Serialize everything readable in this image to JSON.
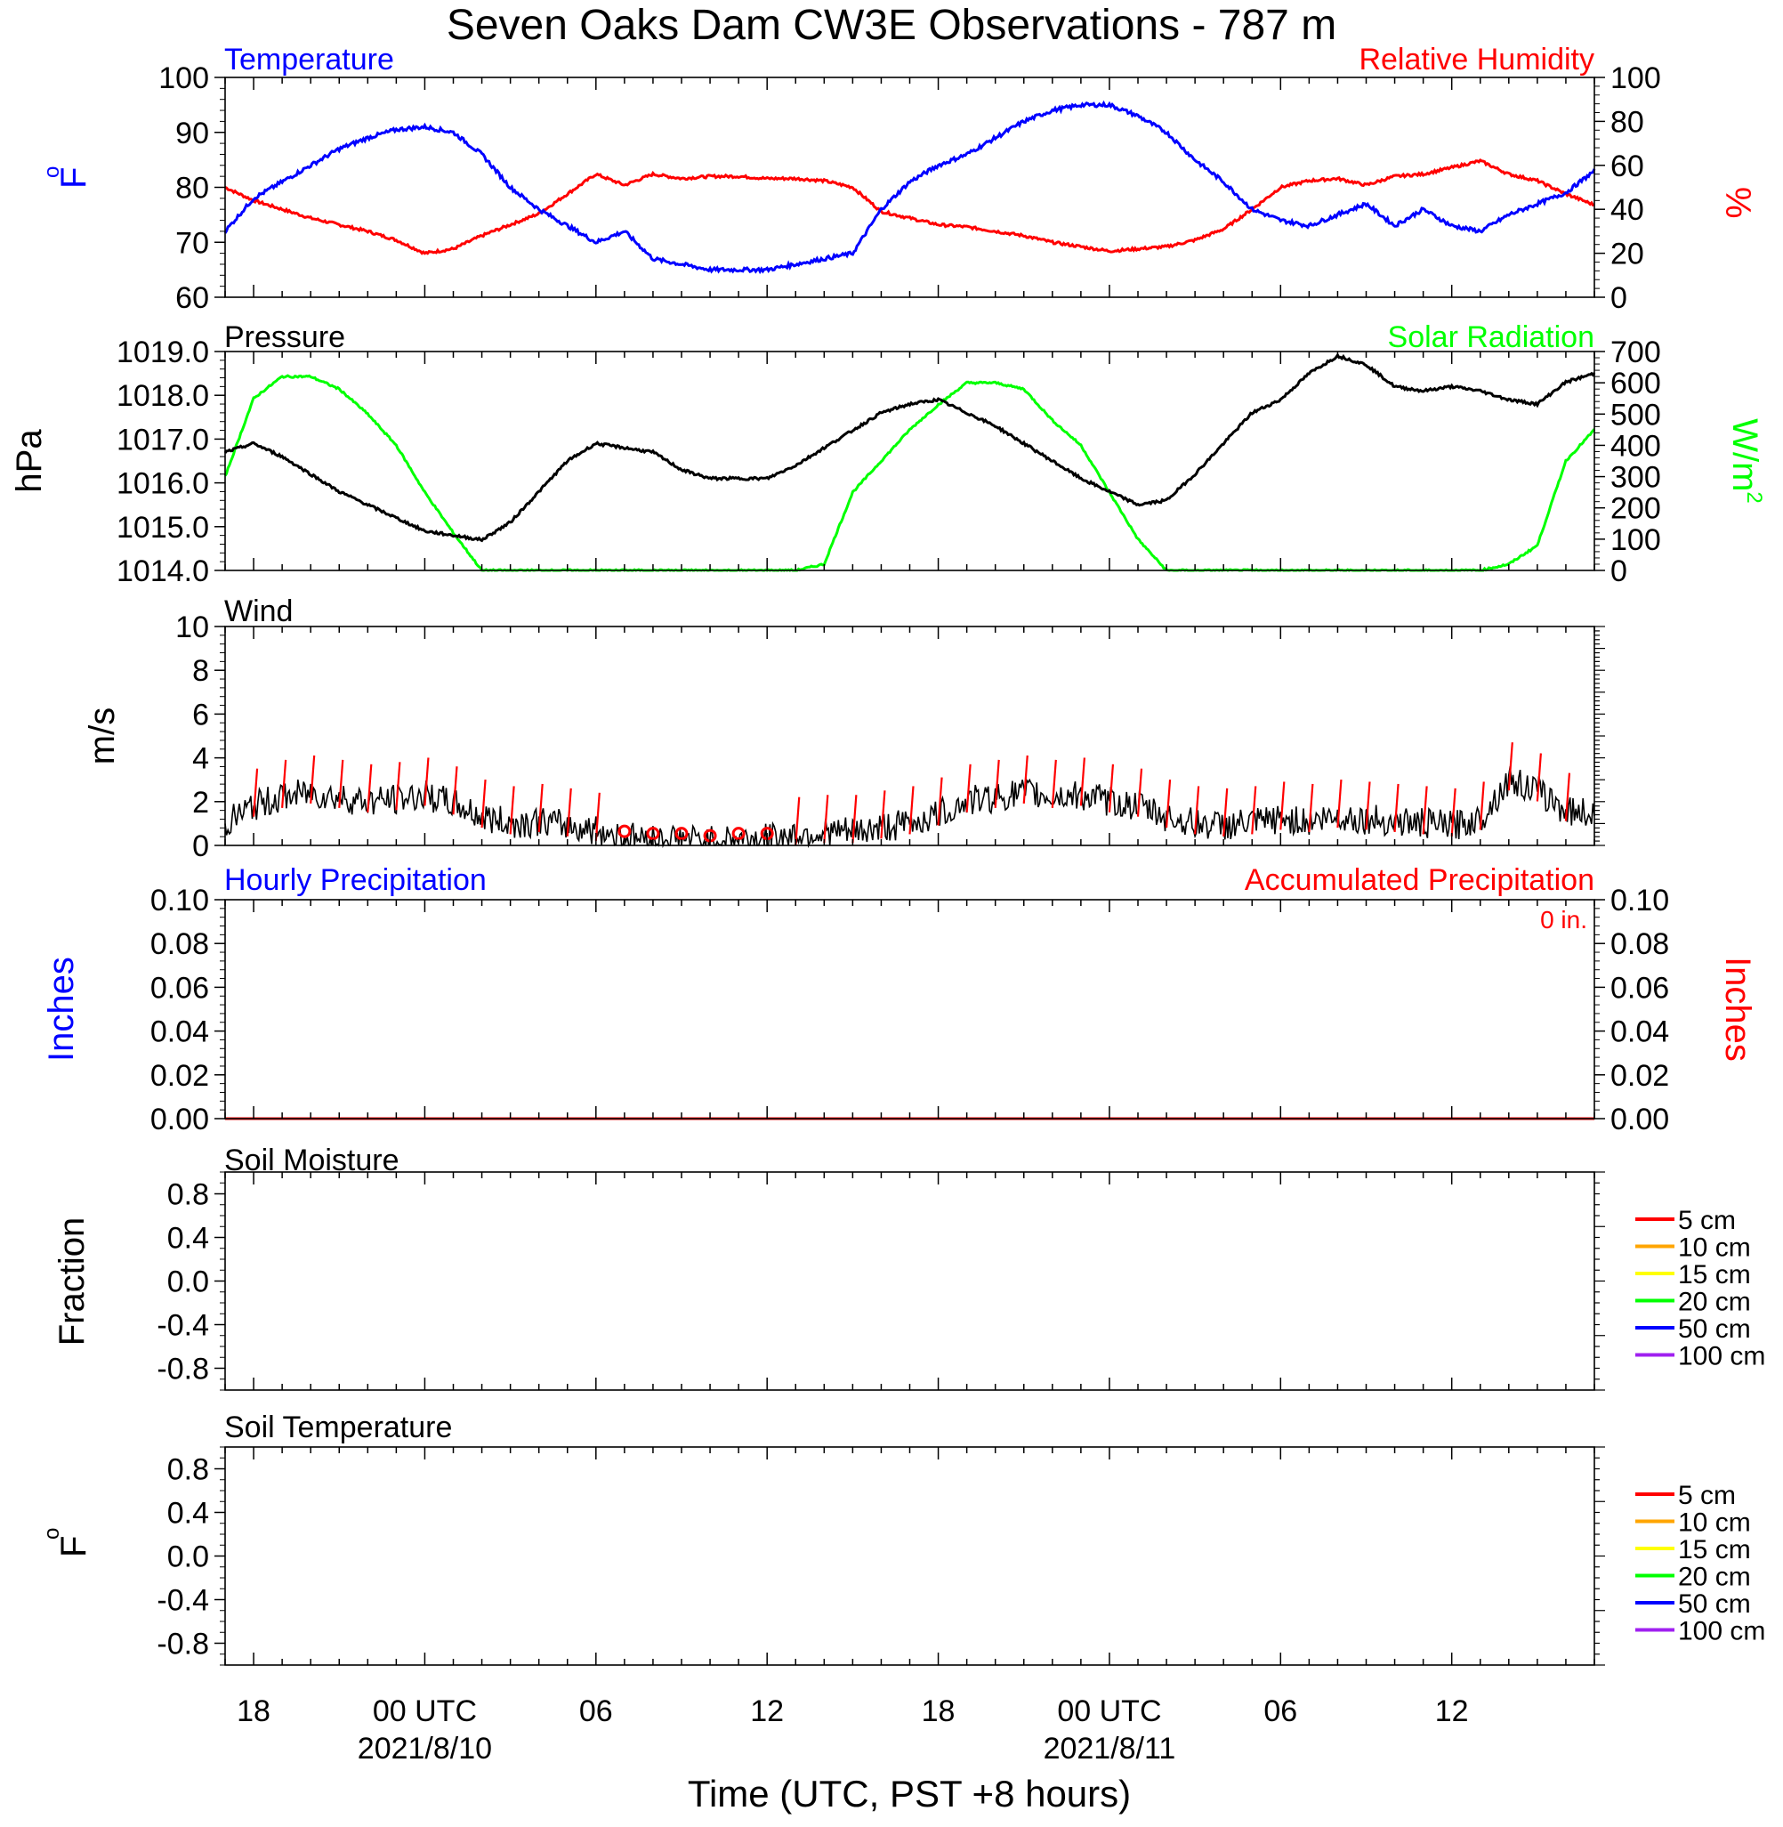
{
  "title": "Seven Oaks Dam CW3E Observations - 787 m",
  "xlabel": "Time (UTC, PST +8 hours)",
  "x_axis": {
    "range_hours": [
      -7,
      41
    ],
    "tick_labels": [
      {
        "hour": -6,
        "label": "18",
        "date": ""
      },
      {
        "hour": 0,
        "label": "00 UTC",
        "date": "2021/8/10"
      },
      {
        "hour": 6,
        "label": "06",
        "date": ""
      },
      {
        "hour": 12,
        "label": "12",
        "date": ""
      },
      {
        "hour": 18,
        "label": "18",
        "date": ""
      },
      {
        "hour": 24,
        "label": "00 UTC",
        "date": "2021/8/11"
      },
      {
        "hour": 30,
        "label": "06",
        "date": ""
      },
      {
        "hour": 36,
        "label": "12",
        "date": ""
      }
    ]
  },
  "colors": {
    "temperature": "#0000ff",
    "humidity": "#ff0000",
    "pressure": "#000000",
    "solar": "#00ff00",
    "wind": "#000000",
    "wind_barb": "#ff0000",
    "precip_hourly": "#0000ff",
    "precip_accum": "#ff0000"
  },
  "panels": {
    "temp": {
      "label_left": "Temperature",
      "label_right": "Relative Humidity",
      "ylabel_left": "oF",
      "ylabel_right": "%",
      "left_ticks": [
        "60",
        "70",
        "80",
        "90",
        "100"
      ],
      "right_ticks": [
        "0",
        "20",
        "40",
        "60",
        "80",
        "100"
      ]
    },
    "pressure": {
      "label_left": "Pressure",
      "label_right": "Solar Radiation",
      "ylabel_left": "hPa",
      "ylabel_right": "W/m2",
      "left_ticks": [
        "1014.0",
        "1015.0",
        "1016.0",
        "1017.0",
        "1018.0",
        "1019.0"
      ],
      "right_ticks": [
        "0",
        "100",
        "200",
        "300",
        "400",
        "500",
        "600",
        "700"
      ]
    },
    "wind": {
      "label_left": "Wind",
      "ylabel_left": "m/s",
      "left_ticks": [
        "0",
        "2",
        "4",
        "6",
        "8",
        "10"
      ]
    },
    "precip": {
      "label_left": "Hourly Precipitation",
      "label_right": "Accumulated Precipitation",
      "total_text": "0 in.",
      "ylabel_left": "Inches",
      "ylabel_right": "Inches",
      "left_ticks": [
        "0.00",
        "0.02",
        "0.04",
        "0.06",
        "0.08",
        "0.10"
      ],
      "right_ticks": [
        "0.00",
        "0.02",
        "0.04",
        "0.06",
        "0.08",
        "0.10"
      ]
    },
    "soil_moisture": {
      "label_left": "Soil Moisture",
      "ylabel_left": "Fraction",
      "left_ticks": [
        "-0.8",
        "-0.4",
        "0.0",
        "0.4",
        "0.8"
      ]
    },
    "soil_temp": {
      "label_left": "Soil Temperature",
      "ylabel_left": "oF",
      "left_ticks": [
        "-0.8",
        "-0.4",
        "0.0",
        "0.4",
        "0.8"
      ]
    }
  },
  "soil_legend": [
    {
      "label": "5 cm",
      "color": "#ff0000"
    },
    {
      "label": "10 cm",
      "color": "#ffa500"
    },
    {
      "label": "15 cm",
      "color": "#ffff00"
    },
    {
      "label": "20 cm",
      "color": "#00ff00"
    },
    {
      "label": "50 cm",
      "color": "#0000ff"
    },
    {
      "label": "100 cm",
      "color": "#a020f0"
    }
  ],
  "chart_data": [
    {
      "type": "line",
      "panel": "temp",
      "title": "Temperature",
      "ylabel": "oF",
      "ylim": [
        60,
        100
      ],
      "xlim": [
        -7,
        41
      ],
      "series": [
        {
          "name": "Temperature",
          "unit": "oF",
          "x": [
            -7,
            -6,
            -5,
            -4,
            -3,
            -2,
            -1,
            0,
            1,
            2,
            3,
            4,
            5,
            6,
            7,
            8,
            9,
            10,
            11,
            12,
            13,
            14,
            15,
            16,
            17,
            18,
            19,
            20,
            21,
            22,
            23,
            24,
            25,
            26,
            27,
            28,
            29,
            30,
            31,
            32,
            33,
            34,
            35,
            36,
            37,
            38,
            39,
            40,
            41
          ],
          "values": [
            72,
            78,
            81,
            84,
            87,
            89,
            90.5,
            91,
            90,
            86,
            80,
            76,
            73,
            70,
            72,
            67,
            66,
            65,
            65,
            65,
            66,
            67,
            68,
            76,
            81,
            84,
            86,
            89,
            92,
            94,
            95,
            95,
            93,
            90,
            85,
            81,
            76,
            74,
            73,
            75,
            77,
            73,
            76,
            73,
            72,
            75,
            77,
            79,
            83
          ]
        }
      ]
    },
    {
      "type": "line",
      "panel": "temp",
      "title": "Relative Humidity",
      "ylabel": "%",
      "ylim": [
        0,
        100
      ],
      "xlim": [
        -7,
        41
      ],
      "series": [
        {
          "name": "Relative Humidity",
          "unit": "%",
          "x": [
            -7,
            -6,
            -5,
            -4,
            -3,
            -2,
            -1,
            0,
            1,
            2,
            3,
            4,
            5,
            6,
            7,
            8,
            9,
            10,
            11,
            12,
            13,
            14,
            15,
            16,
            17,
            18,
            19,
            20,
            21,
            22,
            23,
            24,
            25,
            26,
            27,
            28,
            29,
            30,
            31,
            32,
            33,
            34,
            35,
            36,
            37,
            38,
            39,
            40,
            41
          ],
          "values": [
            50,
            44,
            40,
            36,
            33,
            30,
            26,
            20,
            22,
            28,
            33,
            38,
            47,
            56,
            51,
            56,
            54,
            55,
            55,
            54,
            54,
            53,
            50,
            39,
            36,
            33,
            32,
            30,
            28,
            25,
            23,
            21,
            22,
            23,
            26,
            31,
            40,
            50,
            53,
            54,
            51,
            55,
            56,
            59,
            62,
            56,
            53,
            47,
            42
          ]
        }
      ]
    },
    {
      "type": "line",
      "panel": "pressure",
      "title": "Pressure",
      "ylabel": "hPa",
      "ylim": [
        1014,
        1019
      ],
      "xlim": [
        -7,
        41
      ],
      "series": [
        {
          "name": "Pressure",
          "unit": "hPa",
          "x": [
            -7,
            -6,
            -5,
            -4,
            -3,
            -2,
            -1,
            0,
            1,
            2,
            3,
            4,
            5,
            6,
            7,
            8,
            9,
            10,
            11,
            12,
            13,
            14,
            15,
            16,
            17,
            18,
            19,
            20,
            21,
            22,
            23,
            24,
            25,
            26,
            27,
            28,
            29,
            30,
            31,
            32,
            33,
            34,
            35,
            36,
            37,
            38,
            39,
            40,
            41
          ],
          "values": [
            1016.7,
            1016.9,
            1016.6,
            1016.2,
            1015.8,
            1015.5,
            1015.2,
            1014.9,
            1014.8,
            1014.7,
            1015.1,
            1015.8,
            1016.5,
            1016.9,
            1016.8,
            1016.7,
            1016.3,
            1016.1,
            1016.1,
            1016.1,
            1016.4,
            1016.8,
            1017.2,
            1017.6,
            1017.8,
            1017.9,
            1017.6,
            1017.3,
            1016.9,
            1016.5,
            1016.1,
            1015.8,
            1015.5,
            1015.6,
            1016.2,
            1016.9,
            1017.6,
            1017.9,
            1018.5,
            1018.9,
            1018.7,
            1018.2,
            1018.1,
            1018.2,
            1018.1,
            1017.9,
            1017.8,
            1018.3,
            1018.5
          ]
        }
      ]
    },
    {
      "type": "line",
      "panel": "pressure",
      "title": "Solar Radiation",
      "ylabel": "W/m2",
      "ylim": [
        0,
        700
      ],
      "xlim": [
        -7,
        41
      ],
      "series": [
        {
          "name": "Solar Radiation",
          "unit": "W/m2",
          "x": [
            -7,
            -6,
            -5,
            -4,
            -3,
            -2,
            -1,
            0,
            1,
            2,
            3,
            4,
            5,
            6,
            7,
            8,
            9,
            10,
            11,
            12,
            13,
            14,
            15,
            16,
            17,
            18,
            19,
            20,
            21,
            22,
            23,
            24,
            25,
            26,
            27,
            28,
            29,
            30,
            31,
            32,
            33,
            34,
            35,
            36,
            37,
            38,
            39,
            40,
            41
          ],
          "values": [
            300,
            550,
            620,
            620,
            580,
            500,
            400,
            250,
            120,
            0,
            0,
            0,
            0,
            0,
            0,
            0,
            0,
            0,
            0,
            0,
            0,
            20,
            250,
            350,
            450,
            530,
            600,
            600,
            580,
            480,
            400,
            250,
            100,
            0,
            0,
            0,
            0,
            0,
            0,
            0,
            0,
            0,
            0,
            0,
            0,
            20,
            80,
            350,
            450
          ]
        }
      ]
    },
    {
      "type": "line",
      "panel": "wind",
      "title": "Wind",
      "ylabel": "m/s",
      "ylim": [
        0,
        10
      ],
      "xlim": [
        -7,
        41
      ],
      "series": [
        {
          "name": "Wind",
          "unit": "m/s",
          "x": [
            -7,
            -6,
            -5,
            -4,
            -3,
            -2,
            -1,
            0,
            1,
            2,
            3,
            4,
            5,
            6,
            7,
            8,
            9,
            10,
            11,
            12,
            13,
            14,
            15,
            16,
            17,
            18,
            19,
            20,
            21,
            22,
            23,
            24,
            25,
            26,
            27,
            28,
            29,
            30,
            31,
            32,
            33,
            34,
            35,
            36,
            37,
            38,
            39,
            40,
            41
          ],
          "values": [
            1.0,
            1.8,
            2.2,
            2.4,
            2.2,
            2.0,
            2.1,
            2.3,
            1.9,
            1.3,
            1.0,
            1.1,
            0.9,
            0.7,
            0.4,
            0.3,
            0.3,
            0.2,
            0.3,
            0.3,
            0.5,
            0.6,
            0.6,
            0.8,
            1.0,
            1.4,
            2.0,
            2.2,
            2.4,
            2.2,
            2.3,
            2.0,
            1.8,
            1.3,
            1.0,
            0.9,
            1.0,
            1.2,
            1.1,
            1.3,
            1.2,
            1.1,
            1.0,
            0.9,
            1.2,
            3.0,
            2.5,
            1.6,
            1.5
          ]
        }
      ]
    },
    {
      "type": "line",
      "panel": "precip",
      "title": "Hourly Precipitation",
      "ylabel": "Inches",
      "ylim": [
        0,
        0.1
      ],
      "xlim": [
        -7,
        41
      ],
      "series": [
        {
          "name": "Hourly Precipitation",
          "unit": "in",
          "x": [
            -7,
            41
          ],
          "values": [
            0,
            0
          ]
        }
      ]
    },
    {
      "type": "line",
      "panel": "precip",
      "title": "Accumulated Precipitation",
      "ylabel": "Inches",
      "ylim": [
        0,
        0.1
      ],
      "xlim": [
        -7,
        41
      ],
      "series": [
        {
          "name": "Accumulated Precipitation",
          "unit": "in",
          "x": [
            -7,
            41
          ],
          "values": [
            0,
            0
          ]
        }
      ]
    },
    {
      "type": "line",
      "panel": "soil_moisture",
      "title": "Soil Moisture",
      "ylabel": "Fraction",
      "ylim": [
        -1,
        1
      ],
      "xlim": [
        -7,
        41
      ],
      "series": []
    },
    {
      "type": "line",
      "panel": "soil_temp",
      "title": "Soil Temperature",
      "ylabel": "oF",
      "ylim": [
        -1,
        1
      ],
      "xlim": [
        -7,
        41
      ],
      "series": []
    }
  ]
}
